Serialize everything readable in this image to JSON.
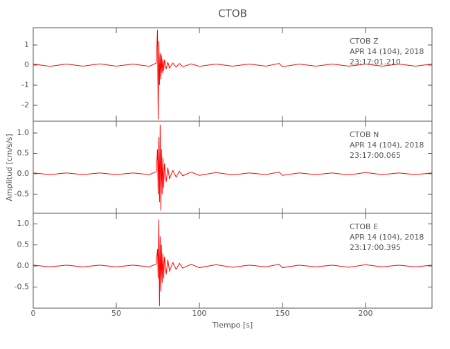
{
  "chart_data": [
    {
      "type": "line",
      "title": "CTOB",
      "annotations": [
        "CTOB   Z",
        "APR 14 (104), 2018",
        "23:17:01.210"
      ],
      "xlim": [
        0,
        240
      ],
      "xticks": [
        0,
        50,
        100,
        150,
        200
      ],
      "ylim": [
        -2.79,
        1.86
      ],
      "yticks": [
        -2,
        -1,
        0,
        1
      ],
      "x": [
        0,
        10,
        20,
        30,
        40,
        50,
        60,
        70,
        74,
        74.8,
        75.2,
        75.6,
        76,
        76.4,
        76.8,
        77.2,
        77.6,
        78,
        78.5,
        79,
        80,
        81,
        82,
        84,
        86,
        88,
        90,
        95,
        100,
        110,
        120,
        130,
        140,
        148,
        150,
        160,
        170,
        180,
        190,
        200,
        210,
        220,
        230,
        240
      ],
      "series": [
        {
          "name": "Z",
          "color": "#ff0000",
          "values": [
            0.05,
            -0.06,
            0.05,
            -0.05,
            0.06,
            -0.05,
            0.05,
            -0.06,
            0.1,
            1.75,
            -2.7,
            1.2,
            -1.0,
            0.6,
            -0.7,
            0.5,
            -0.4,
            0.3,
            -0.3,
            0.25,
            -0.2,
            0.15,
            -0.15,
            0.1,
            -0.1,
            0.08,
            -0.08,
            0.06,
            -0.06,
            0.05,
            -0.05,
            0.05,
            -0.05,
            0.08,
            -0.08,
            0.05,
            -0.05,
            0.05,
            -0.05,
            0.05,
            -0.05,
            0.05,
            -0.05,
            0.05
          ]
        }
      ]
    },
    {
      "type": "line",
      "y_label": "Amplitud [cm/s/s]",
      "annotations": [
        "CTOB   N",
        "APR 14 (104), 2018",
        "23:17:00.065"
      ],
      "xlim": [
        0,
        240
      ],
      "xticks": [
        0,
        50,
        100,
        150,
        200
      ],
      "ylim": [
        -0.97,
        1.29
      ],
      "yticks": [
        -0.5,
        {
          "value": 0,
          "label": "0.0"
        },
        0.5,
        {
          "value": 1,
          "label": "1.0"
        }
      ],
      "x": [
        0,
        10,
        20,
        30,
        40,
        50,
        60,
        70,
        74,
        74.8,
        75.2,
        75.6,
        76,
        76.4,
        76.8,
        77.2,
        77.6,
        78,
        78.5,
        79,
        80,
        81,
        82,
        84,
        86,
        88,
        90,
        95,
        100,
        110,
        120,
        130,
        140,
        148,
        150,
        160,
        170,
        180,
        190,
        200,
        210,
        220,
        230,
        240
      ],
      "series": [
        {
          "name": "N",
          "color": "#ff0000",
          "values": [
            0.02,
            -0.02,
            0.02,
            -0.02,
            0.02,
            -0.02,
            0.02,
            -0.02,
            0.05,
            0.6,
            -0.5,
            0.9,
            -0.7,
            1.2,
            -0.9,
            0.6,
            -0.5,
            0.4,
            -0.35,
            0.25,
            -0.2,
            0.15,
            -0.12,
            0.08,
            -0.08,
            0.06,
            -0.05,
            0.04,
            -0.04,
            0.03,
            -0.03,
            0.02,
            -0.02,
            0.04,
            -0.04,
            0.02,
            -0.02,
            0.02,
            -0.03,
            0.03,
            -0.02,
            0.02,
            -0.02,
            0.02
          ]
        }
      ]
    },
    {
      "type": "line",
      "x_label": "Tiempo [s]",
      "annotations": [
        "CTOB   E",
        "APR 14 (104), 2018",
        "23:17:00.395"
      ],
      "xlim": [
        0,
        240
      ],
      "xticks": [
        0,
        50,
        100,
        150,
        200
      ],
      "ylim": [
        -1.0,
        1.25
      ],
      "yticks": [
        -0.5,
        {
          "value": 0,
          "label": "0.0"
        },
        0.5,
        {
          "value": 1,
          "label": "1.0"
        }
      ],
      "x": [
        0,
        10,
        20,
        30,
        40,
        50,
        60,
        70,
        74,
        74.8,
        75.2,
        75.6,
        76,
        76.4,
        76.8,
        77.2,
        77.6,
        78,
        78.5,
        79,
        80,
        81,
        82,
        84,
        86,
        88,
        90,
        95,
        100,
        110,
        120,
        130,
        140,
        148,
        150,
        160,
        170,
        180,
        190,
        200,
        210,
        220,
        230,
        240
      ],
      "series": [
        {
          "name": "E",
          "color": "#ff0000",
          "values": [
            0.02,
            -0.02,
            0.02,
            -0.02,
            0.02,
            -0.02,
            0.02,
            -0.02,
            0.05,
            0.4,
            -0.3,
            1.1,
            -0.95,
            0.7,
            -0.6,
            0.5,
            -0.4,
            0.3,
            -0.3,
            0.22,
            -0.2,
            0.15,
            -0.12,
            0.08,
            -0.08,
            0.06,
            -0.05,
            0.04,
            -0.04,
            0.03,
            -0.03,
            0.02,
            -0.02,
            0.04,
            -0.04,
            0.02,
            -0.02,
            0.02,
            -0.03,
            0.03,
            -0.02,
            0.02,
            -0.02,
            0.02
          ]
        }
      ]
    }
  ]
}
